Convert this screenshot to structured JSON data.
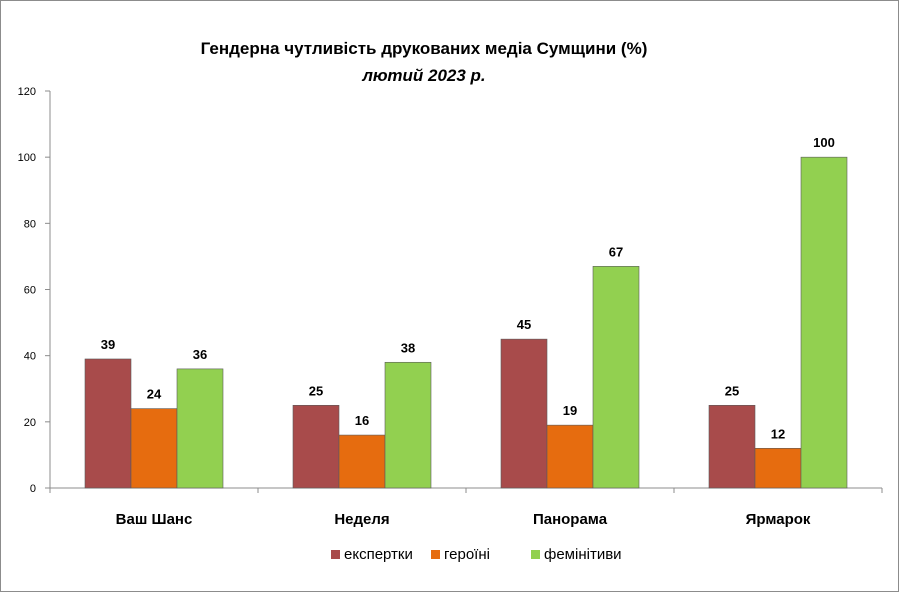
{
  "chart_data": {
    "type": "bar",
    "title": "Гендерна чутливість друкованих медіа Сумщини (%)",
    "subtitle": "лютий 2023 р.",
    "categories": [
      "Ваш Шанс",
      "Неделя",
      "Панорама",
      "Ярмарок"
    ],
    "series": [
      {
        "name": "експертки",
        "color": "#a84b4b",
        "values": [
          39,
          25,
          45,
          25
        ]
      },
      {
        "name": "героїні",
        "color": "#e66c0f",
        "values": [
          24,
          16,
          19,
          12
        ]
      },
      {
        "name": "фемінітиви",
        "color": "#92d050",
        "values": [
          36,
          38,
          67,
          100
        ]
      }
    ],
    "ylim": [
      0,
      120
    ],
    "yticks": [
      0,
      20,
      40,
      60,
      80,
      100,
      120
    ],
    "grid": false,
    "data_labels": true,
    "legend_position": "bottom"
  }
}
